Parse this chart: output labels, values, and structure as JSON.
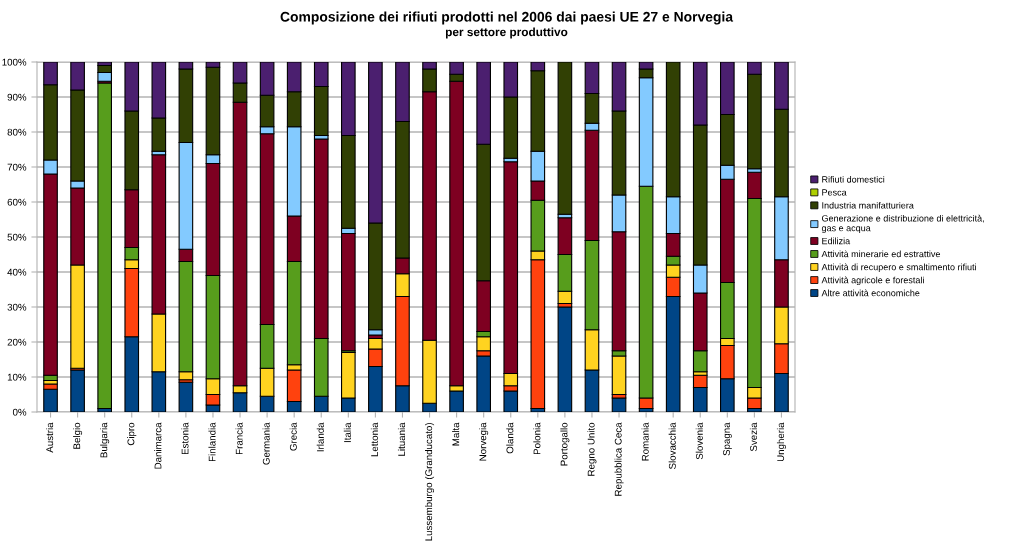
{
  "chart_data": {
    "type": "bar",
    "stacked": true,
    "title": "Composizione dei rifiuti prodotti nel 2006 dai paesi UE 27 e Norvegia",
    "subtitle": "per settore produttivo",
    "categories": [
      "Austria",
      "Belgio",
      "Bulgaria",
      "Cipro",
      "Danimarca",
      "Estonia",
      "Finlandia",
      "Francia",
      "Germania",
      "Grecia",
      "Irlanda",
      "Italia",
      "Lettonia",
      "Lituania",
      "Lussemburgo (Granducato)",
      "Malta",
      "Norvegia",
      "Olanda",
      "Polonia",
      "Portogallo",
      "Regno Unito",
      "Repubblica Ceca",
      "Romania",
      "Slovacchia",
      "Slovenia",
      "Spagna",
      "Svezia",
      "Ungheria"
    ],
    "ylim": [
      0,
      100
    ],
    "yticks": [
      {
        "value": 0,
        "label": "0%"
      },
      {
        "value": 10,
        "label": "10%"
      },
      {
        "value": 20,
        "label": "20%"
      },
      {
        "value": 30,
        "label": "30%"
      },
      {
        "value": 40,
        "label": "40%"
      },
      {
        "value": 50,
        "label": "50%"
      },
      {
        "value": 60,
        "label": "60%"
      },
      {
        "value": 70,
        "label": "70%"
      },
      {
        "value": 80,
        "label": "80%"
      },
      {
        "value": 90,
        "label": "90%"
      },
      {
        "value": 100,
        "label": "100%"
      }
    ],
    "grid": "y",
    "legend": "right",
    "series": [
      {
        "name": "Altre attività economiche",
        "color": "#004586",
        "values": [
          6.5,
          12,
          1,
          21.5,
          11.5,
          8.5,
          2,
          5.5,
          4.5,
          3,
          4.5,
          4,
          13,
          7.5,
          2.5,
          6,
          16,
          6,
          1,
          30,
          12,
          4,
          1,
          33,
          7,
          9.5,
          1,
          11
        ]
      },
      {
        "name": "Attività agricole e forestali",
        "color": "#ff420e",
        "values": [
          1.5,
          0.5,
          0,
          19.5,
          0,
          0.7,
          3,
          0,
          0,
          9,
          0,
          null,
          5,
          25.5,
          0,
          0,
          1.5,
          1.5,
          42.5,
          1,
          0,
          1,
          3,
          5.5,
          3.5,
          9.5,
          3,
          8.5
        ]
      },
      {
        "name": "Attività di recupero e smaltimento rifiuti",
        "color": "#ffd320",
        "values": [
          1,
          29.5,
          0,
          2.5,
          16.5,
          2.3,
          4.5,
          2,
          8,
          1.5,
          0,
          13,
          3,
          6.5,
          18,
          1.5,
          4,
          3.5,
          2.5,
          3.5,
          11.5,
          11,
          0,
          3.5,
          1,
          2,
          3,
          10.5
        ]
      },
      {
        "name": "Attività minerarie ed estrattive",
        "color": "#579d1c",
        "values": [
          1.5,
          null,
          93,
          3.5,
          0,
          31.5,
          29.5,
          0,
          12.5,
          29.5,
          16.5,
          0.5,
          0,
          0,
          0,
          0,
          1.5,
          0,
          14.5,
          10.5,
          25.5,
          1.5,
          60.5,
          2.5,
          6,
          16,
          54,
          0
        ]
      },
      {
        "name": "Edilizia",
        "color": "#7e0021",
        "values": [
          57.5,
          22,
          0.5,
          16.5,
          45.5,
          3.5,
          32,
          81,
          54.5,
          13,
          57,
          33.5,
          1,
          4.5,
          71,
          87,
          14.5,
          60.5,
          5.5,
          10.5,
          31.5,
          34,
          0,
          6.5,
          16.5,
          29.5,
          7.5,
          13.5
        ]
      },
      {
        "name": "Generazione e distribuzione di elettricità, gas e acqua",
        "color": "#83caff",
        "values": [
          4,
          2,
          2.5,
          0,
          1,
          30.5,
          2.5,
          0,
          2,
          25.5,
          1,
          1.5,
          1.5,
          0,
          0,
          0,
          0,
          1,
          8.5,
          1,
          2,
          10.5,
          31,
          10.5,
          8,
          4,
          1,
          18
        ]
      },
      {
        "name": "Industria manifatturiera",
        "color": "#314004",
        "values": [
          21.5,
          26,
          2,
          22.5,
          9.5,
          21,
          25,
          5.5,
          9,
          10,
          14,
          26.5,
          30.5,
          39,
          6.5,
          2,
          39,
          17.5,
          23,
          43.5,
          8.5,
          24,
          2.5,
          38.5,
          40,
          14.5,
          27,
          25
        ]
      },
      {
        "name": "Pesca",
        "color": "#aecf00",
        "values": [
          0,
          0,
          0,
          0,
          0,
          0,
          0,
          0,
          0,
          0,
          0,
          0,
          0,
          0,
          0,
          0,
          0,
          0,
          0,
          0,
          0,
          0,
          0,
          0,
          0,
          0,
          0,
          0
        ]
      },
      {
        "name": "Rifiuti domestici",
        "color": "#4b1f6f",
        "values": [
          6.5,
          8,
          1,
          14,
          16,
          2,
          1.5,
          6,
          9.5,
          8.5,
          7,
          21,
          46,
          17,
          2,
          3.5,
          23.5,
          10,
          2.5,
          0,
          9,
          14,
          2,
          0,
          18,
          15,
          3.5,
          13.5
        ]
      }
    ]
  }
}
